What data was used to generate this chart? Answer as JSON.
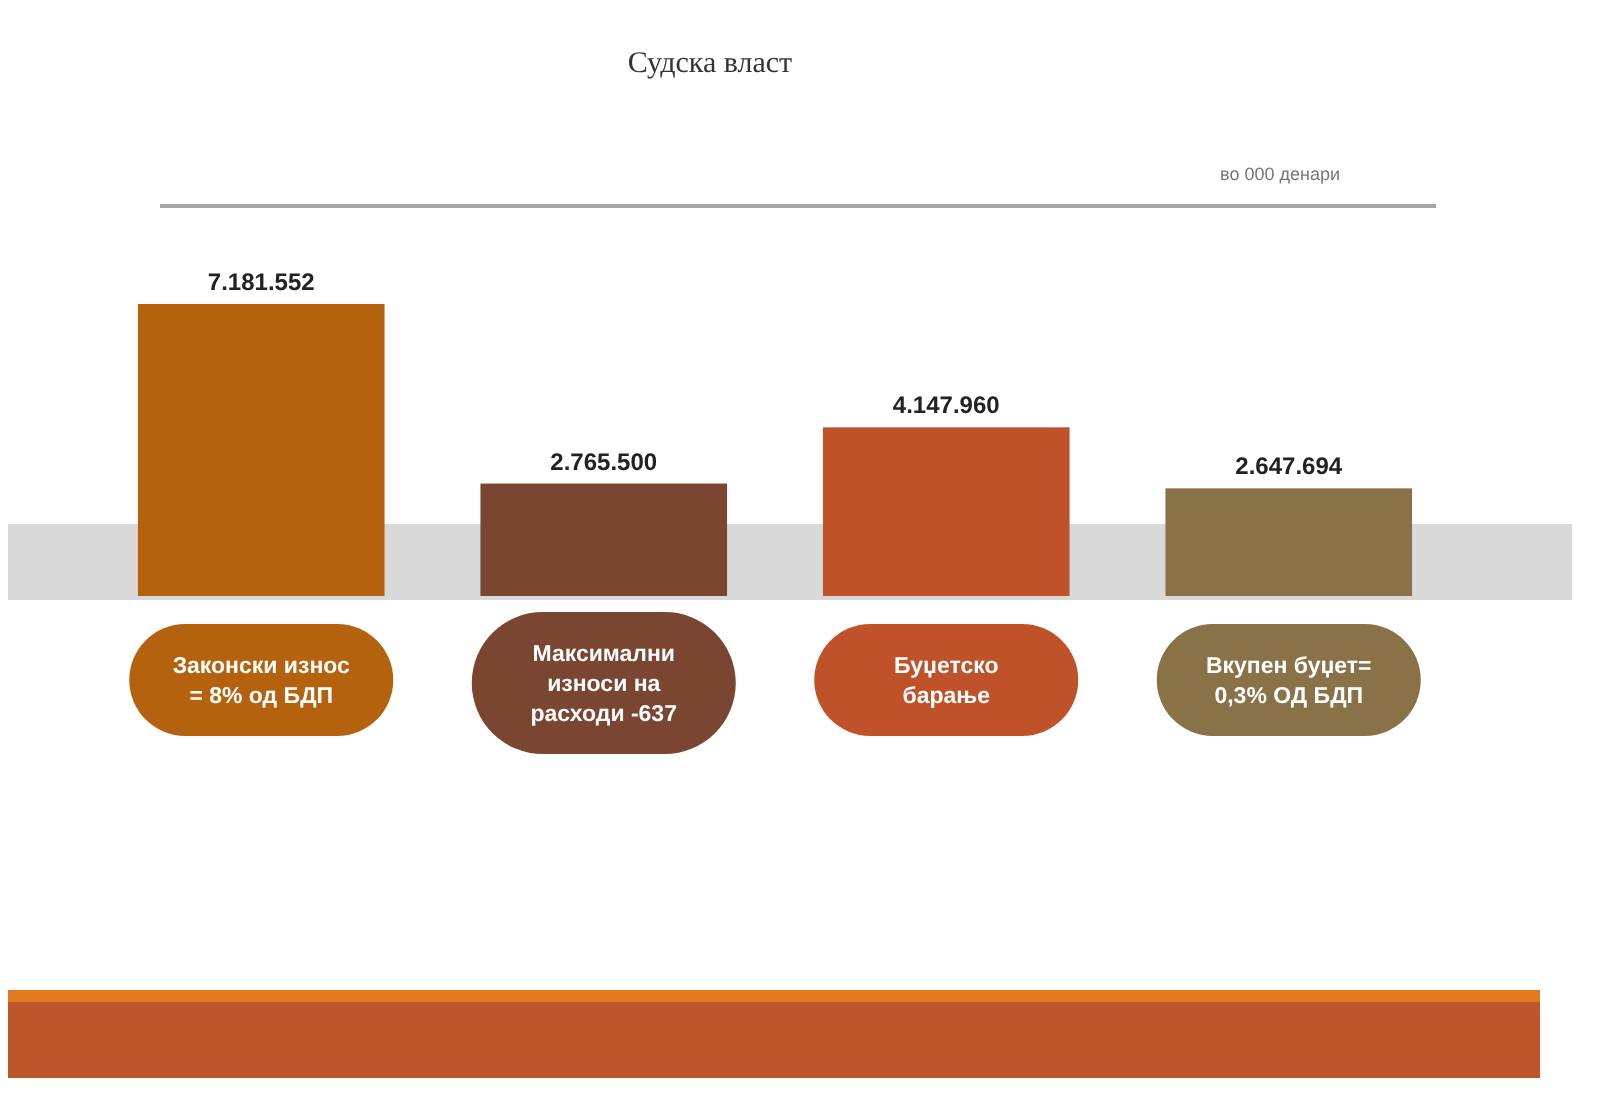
{
  "chart_data": {
    "type": "bar",
    "title": "Судска власт",
    "subtitle": "во 000 денари",
    "categories": [
      "Законски износ = 8% од БДП",
      "Максимални износи на расходи -637",
      "Буџетско барање",
      "Вкупен буџет= 0,3% ОД БДП"
    ],
    "values": [
      7181552,
      2765500,
      4147960,
      2647694
    ],
    "colors": [
      "#b5620f",
      "#7a4632",
      "#c0522a",
      "#8a7248"
    ],
    "value_labels": [
      "7.181.552",
      "2.765.500",
      "4.147.960",
      "2.647.694"
    ],
    "tick_labels": "x"
  }
}
